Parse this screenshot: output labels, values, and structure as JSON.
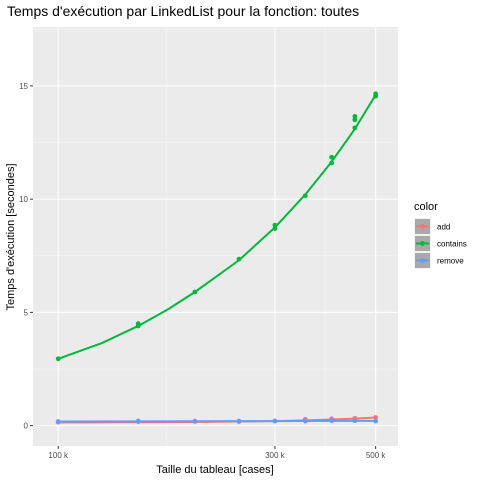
{
  "chart_data": {
    "type": "line",
    "title": "Temps d'exécution par LinkedList pour la fonction: toutes",
    "xlabel": "Taille du tableau [cases]",
    "ylabel": "Temps d'exécution [secondes]",
    "x_scale": "log10",
    "xlim": [
      88000,
      560000
    ],
    "ylim": [
      -0.9,
      17.6
    ],
    "x_ticks": [
      100000,
      300000,
      500000
    ],
    "x_tick_labels": [
      "100 k",
      "300 k",
      "500 k"
    ],
    "y_ticks": [
      0,
      5,
      10,
      15
    ],
    "y_tick_labels": [
      "0",
      "5",
      "10",
      "15"
    ],
    "grid": true,
    "legend": {
      "title": "color",
      "position": "right"
    },
    "series": [
      {
        "name": "add",
        "color": "#F8766D",
        "points": [
          [
            100000,
            0.15
          ],
          [
            150000,
            0.18
          ],
          [
            200000,
            0.18
          ],
          [
            250000,
            0.18
          ],
          [
            300000,
            0.2
          ],
          [
            350000,
            0.28
          ],
          [
            400000,
            0.3
          ],
          [
            450000,
            0.32
          ],
          [
            500000,
            0.36
          ]
        ],
        "smooth": [
          [
            100000,
            0.14
          ],
          [
            150000,
            0.15
          ],
          [
            200000,
            0.16
          ],
          [
            250000,
            0.18
          ],
          [
            300000,
            0.2
          ],
          [
            350000,
            0.23
          ],
          [
            400000,
            0.27
          ],
          [
            450000,
            0.31
          ],
          [
            500000,
            0.36
          ]
        ]
      },
      {
        "name": "contains",
        "color": "#00BA38",
        "points": [
          [
            100000,
            2.95
          ],
          [
            150000,
            4.4
          ],
          [
            150000,
            4.5
          ],
          [
            200000,
            5.9
          ],
          [
            250000,
            7.35
          ],
          [
            300000,
            8.7
          ],
          [
            300000,
            8.85
          ],
          [
            350000,
            10.15
          ],
          [
            400000,
            11.6
          ],
          [
            400000,
            11.85
          ],
          [
            450000,
            13.15
          ],
          [
            450000,
            13.5
          ],
          [
            450000,
            13.65
          ],
          [
            500000,
            14.55
          ],
          [
            500000,
            14.65
          ]
        ],
        "smooth": [
          [
            100000,
            2.95
          ],
          [
            125000,
            3.65
          ],
          [
            150000,
            4.4
          ],
          [
            175000,
            5.15
          ],
          [
            200000,
            5.9
          ],
          [
            250000,
            7.3
          ],
          [
            300000,
            8.75
          ],
          [
            350000,
            10.2
          ],
          [
            400000,
            11.65
          ],
          [
            450000,
            13.1
          ],
          [
            500000,
            14.6
          ]
        ]
      },
      {
        "name": "remove",
        "color": "#619CFF",
        "points": [
          [
            100000,
            0.18
          ],
          [
            150000,
            0.2
          ],
          [
            200000,
            0.2
          ],
          [
            250000,
            0.2
          ],
          [
            300000,
            0.2
          ],
          [
            350000,
            0.2
          ],
          [
            400000,
            0.22
          ],
          [
            450000,
            0.22
          ],
          [
            500000,
            0.2
          ]
        ],
        "smooth": [
          [
            100000,
            0.18
          ],
          [
            200000,
            0.19
          ],
          [
            300000,
            0.2
          ],
          [
            400000,
            0.21
          ],
          [
            500000,
            0.21
          ]
        ]
      }
    ]
  }
}
